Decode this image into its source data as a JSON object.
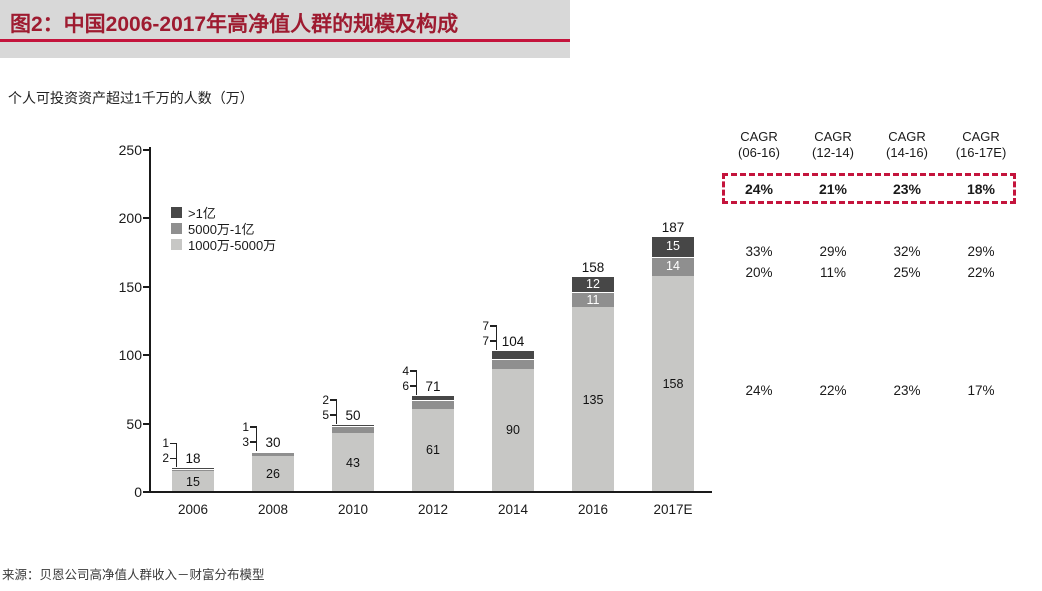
{
  "header": {
    "title": "图2：中国2006-2017年高净值人群的规模及构成"
  },
  "subtitle": "个人可投资资产超过1千万的人数（万）",
  "source": "来源：贝恩公司高净值人群收入－财富分布模型",
  "colors": {
    "header_bg": "#d8d8d8",
    "header_text": "#9e1b30",
    "accent_red": "#c4143c",
    "bar_light": "#c7c7c5",
    "bar_mid": "#8f8f8f",
    "bar_dark": "#474747",
    "axis": "#1a1a1a",
    "white_label": "#ffffff"
  },
  "legend": [
    {
      "label": ">1亿",
      "color_key": "bar_dark"
    },
    {
      "label": "5000万-1亿",
      "color_key": "bar_mid"
    },
    {
      "label": "1000万-5000万",
      "color_key": "bar_light"
    }
  ],
  "chart_data": {
    "type": "bar",
    "stacked": true,
    "title": "图2：中国2006-2017年高净值人群的规模及构成",
    "ylabel": "个人可投资资产超过1千万的人数（万）",
    "xlabel": "",
    "categories": [
      "2006",
      "2008",
      "2010",
      "2012",
      "2014",
      "2016",
      "2017E"
    ],
    "series": [
      {
        "name": "1000万-5000万",
        "color_key": "bar_light",
        "values": [
          15,
          26,
          43,
          61,
          90,
          135,
          158
        ]
      },
      {
        "name": "5000万-1亿",
        "color_key": "bar_mid",
        "values": [
          2,
          3,
          5,
          6,
          7,
          11,
          14
        ]
      },
      {
        "name": ">1亿",
        "color_key": "bar_dark",
        "values": [
          1,
          1,
          2,
          4,
          7,
          12,
          15
        ]
      }
    ],
    "totals": [
      18,
      30,
      50,
      71,
      104,
      158,
      187
    ],
    "label_mode": [
      "callout",
      "callout",
      "callout",
      "callout",
      "callout",
      "inside",
      "inside"
    ],
    "ylim": [
      0,
      250
    ],
    "yticks": [
      0,
      50,
      100,
      150,
      200,
      250
    ],
    "grid": false,
    "legend_position": "upper-left"
  },
  "cagr_table": {
    "columns": [
      {
        "line1": "CAGR",
        "line2": "(06-16)"
      },
      {
        "line1": "CAGR",
        "line2": "(12-14)"
      },
      {
        "line1": "CAGR",
        "line2": "(14-16)"
      },
      {
        "line1": "CAGR",
        "line2": "(16-17E)"
      }
    ],
    "total_row": [
      "24%",
      "21%",
      "23%",
      "18%"
    ],
    "rows": [
      {
        "label": ">1亿",
        "values": [
          "33%",
          "29%",
          "32%",
          "29%"
        ]
      },
      {
        "label": "5000万-1亿",
        "values": [
          "20%",
          "11%",
          "25%",
          "22%"
        ]
      },
      {
        "label": "1000万-5000万",
        "values": [
          "24%",
          "22%",
          "23%",
          "17%"
        ]
      }
    ]
  }
}
